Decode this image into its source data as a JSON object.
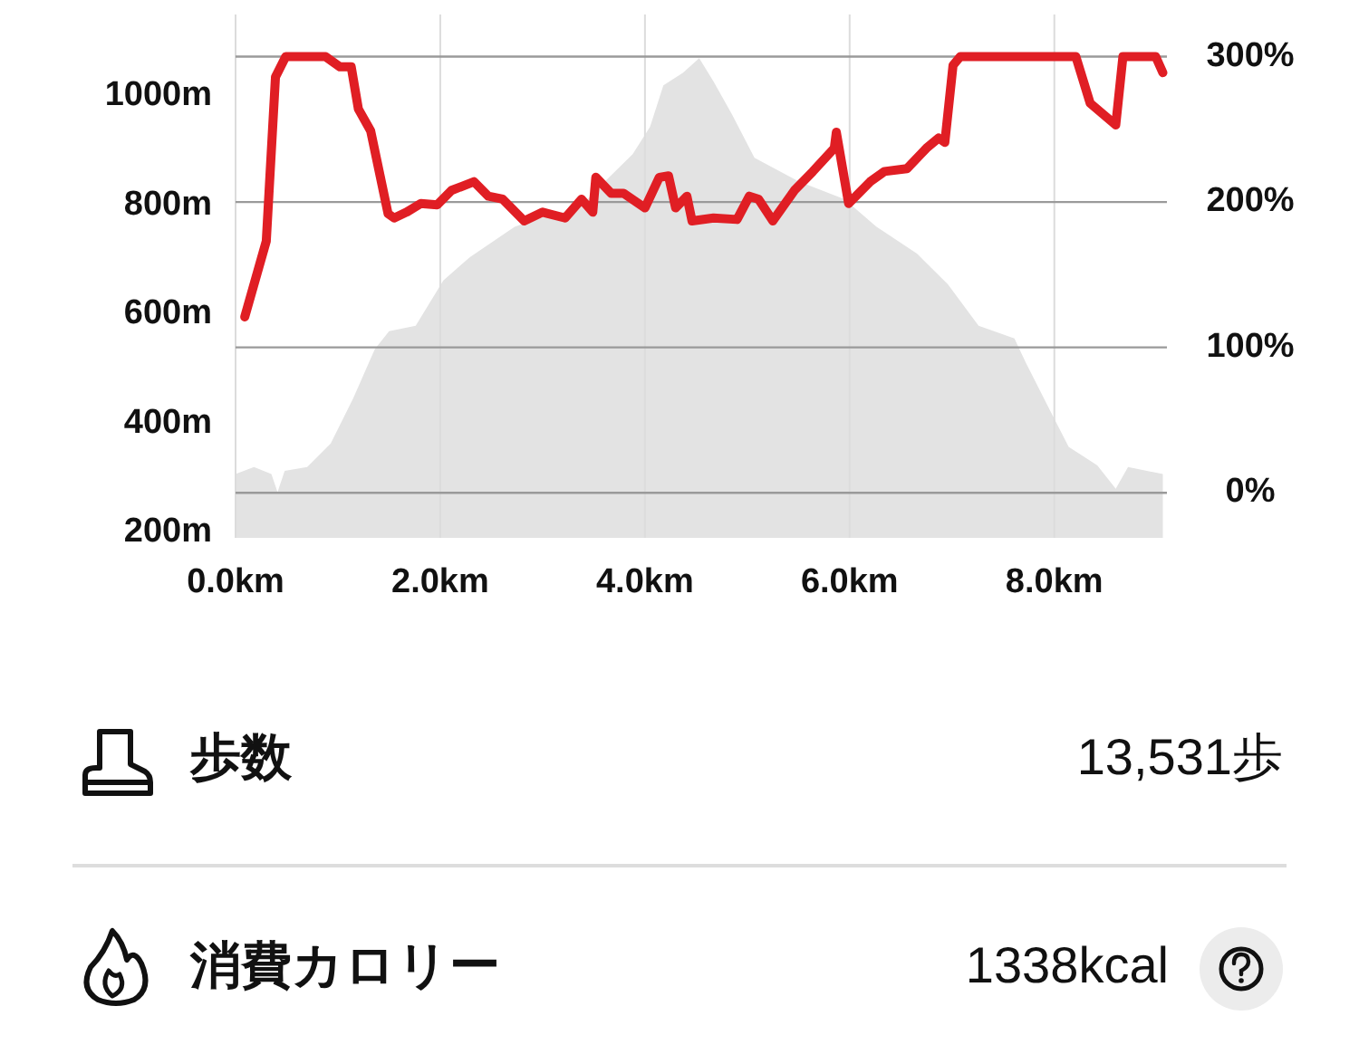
{
  "chart_data": {
    "type": "line",
    "xlim": [
      0,
      9.1
    ],
    "xticks": [
      {
        "value": 0,
        "label": "0.0km"
      },
      {
        "value": 2,
        "label": "2.0km"
      },
      {
        "value": 4,
        "label": "4.0km"
      },
      {
        "value": 6,
        "label": "6.0km"
      },
      {
        "value": 8,
        "label": "8.0km"
      }
    ],
    "ylim": [
      190,
      1150
    ],
    "yticks": [
      {
        "value": 200,
        "label": "200m"
      },
      {
        "value": 400,
        "label": "400m"
      },
      {
        "value": 600,
        "label": "600m"
      },
      {
        "value": 800,
        "label": "800m"
      },
      {
        "value": 1000,
        "label": "1000m"
      }
    ],
    "y2lim": [
      -31,
      329
    ],
    "y2ticks": [
      {
        "value": 0,
        "label": "0%"
      },
      {
        "value": 100,
        "label": "100%"
      },
      {
        "value": 200,
        "label": "200%"
      },
      {
        "value": 300,
        "label": "300%"
      }
    ],
    "grid": true,
    "series": [
      {
        "type": "area",
        "axis": "y",
        "color": "#e3e3e3",
        "x": [
          0.0,
          0.18,
          0.35,
          0.41,
          0.48,
          0.7,
          0.93,
          1.15,
          1.36,
          1.5,
          1.76,
          2.03,
          2.29,
          2.73,
          3.0,
          3.35,
          3.61,
          3.88,
          4.05,
          4.18,
          4.37,
          4.53,
          4.67,
          4.85,
          5.07,
          5.5,
          5.95,
          6.26,
          6.66,
          6.96,
          7.26,
          7.61,
          7.72,
          7.96,
          8.14,
          8.42,
          8.6,
          8.72,
          9.06
        ],
        "values": [
          307,
          320,
          307,
          274,
          313,
          320,
          363,
          446,
          536,
          569,
          579,
          662,
          705,
          761,
          778,
          794,
          844,
          894,
          944,
          1020,
          1043,
          1070,
          1027,
          967,
          887,
          844,
          811,
          761,
          711,
          655,
          579,
          556,
          512,
          423,
          357,
          323,
          280,
          320,
          307
        ]
      },
      {
        "axis": "y2",
        "color": "#e01e24",
        "x": [
          0.09,
          0.3,
          0.39,
          0.49,
          0.88,
          1.02,
          1.13,
          1.2,
          1.32,
          1.49,
          1.55,
          1.67,
          1.81,
          1.97,
          2.11,
          2.33,
          2.47,
          2.61,
          2.82,
          3.0,
          3.22,
          3.38,
          3.49,
          3.52,
          3.67,
          3.79,
          4.0,
          4.14,
          4.23,
          4.3,
          4.41,
          4.46,
          4.67,
          4.9,
          5.02,
          5.11,
          5.25,
          5.46,
          5.64,
          5.85,
          5.87,
          5.99,
          6.2,
          6.34,
          6.56,
          6.75,
          6.87,
          6.93,
          7.01,
          7.08,
          8.21,
          8.35,
          8.6,
          8.67,
          8.99,
          9.06
        ],
        "values": [
          121,
          173,
          286,
          300,
          300,
          293,
          293,
          264,
          249,
          192,
          189,
          193,
          199,
          198,
          208,
          214,
          204,
          202,
          187,
          193,
          189,
          202,
          193,
          217,
          206,
          206,
          196,
          217,
          218,
          196,
          204,
          187,
          189,
          188,
          204,
          202,
          187,
          208,
          221,
          237,
          248,
          199,
          214,
          221,
          223,
          237,
          244,
          241,
          294,
          300,
          300,
          268,
          253,
          300,
          300,
          289
        ]
      }
    ],
    "annotations": [
      "歩数",
      "13,531歩",
      "消費カロリー",
      "1338kcal"
    ]
  }
}
